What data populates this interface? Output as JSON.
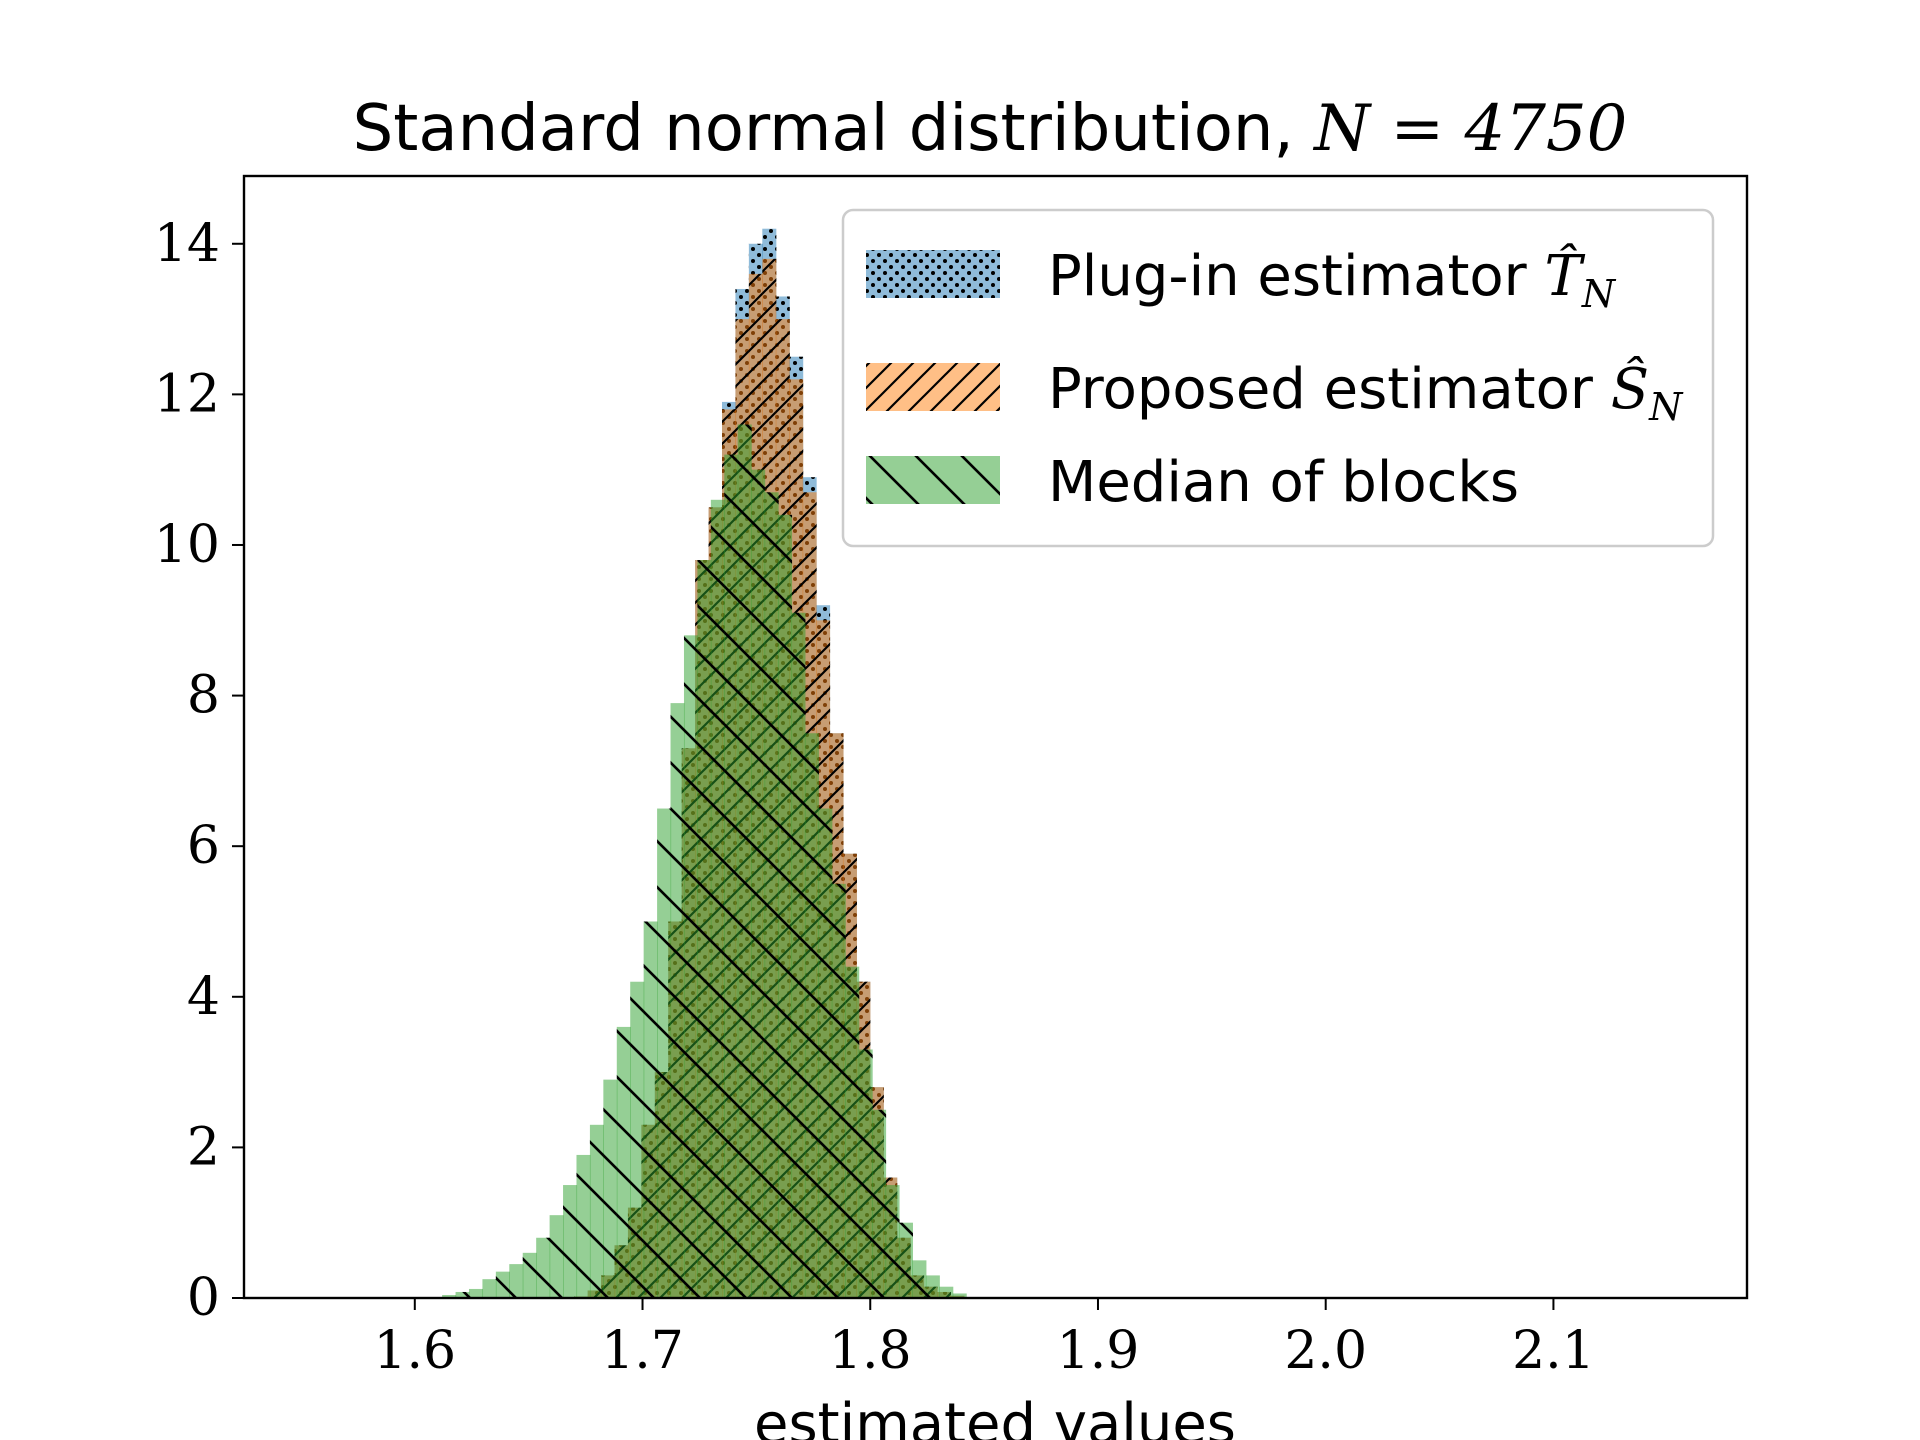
{
  "chart_data": {
    "type": "histogram",
    "title_text": "Standard normal distribution, ",
    "title_math": "N = 4750",
    "xlabel": "estimated values",
    "ylabel": "",
    "xlim": [
      1.525,
      2.185
    ],
    "ylim": [
      0,
      14.9
    ],
    "x_ticks": [
      {
        "value": 1.6,
        "label": "1.6"
      },
      {
        "value": 1.7,
        "label": "1.7"
      },
      {
        "value": 1.8,
        "label": "1.8"
      },
      {
        "value": 1.9,
        "label": "1.9"
      },
      {
        "value": 2.0,
        "label": "2.0"
      },
      {
        "value": 2.1,
        "label": "2.1"
      }
    ],
    "y_ticks": [
      {
        "value": 0,
        "label": "0"
      },
      {
        "value": 2,
        "label": "2"
      },
      {
        "value": 4,
        "label": "4"
      },
      {
        "value": 6,
        "label": "6"
      },
      {
        "value": 8,
        "label": "8"
      },
      {
        "value": 10,
        "label": "10"
      },
      {
        "value": 12,
        "label": "12"
      },
      {
        "value": 14,
        "label": "14"
      }
    ],
    "grid": false,
    "legend_position": "top-right",
    "series": [
      {
        "name": "Plug-in estimator ",
        "name_math": "T̂",
        "name_sub": "N",
        "color": "#1f77b4",
        "hatch": "dots",
        "bin_width": 0.0059,
        "bin_edges": [
          1.67,
          1.6759,
          1.6818,
          1.6877,
          1.6936,
          1.6995,
          1.7054,
          1.7113,
          1.7172,
          1.7231,
          1.729,
          1.7349,
          1.7408,
          1.7467,
          1.7526,
          1.7585,
          1.7644,
          1.7703,
          1.7762,
          1.7821,
          1.788,
          1.7939,
          1.7998,
          1.8057,
          1.8116,
          1.8175,
          1.8234,
          1.8293,
          1.8352,
          1.8411,
          1.847
        ],
        "values": [
          0.02,
          0.1,
          0.3,
          0.7,
          1.2,
          2.3,
          3.0,
          5.0,
          7.3,
          9.8,
          10.5,
          11.9,
          13.4,
          14.0,
          14.2,
          13.3,
          12.5,
          10.9,
          9.2,
          7.5,
          5.9,
          4.2,
          2.8,
          1.6,
          0.8,
          0.3,
          0.15,
          0.08,
          0.03,
          0.01
        ]
      },
      {
        "name": "Proposed estimator ",
        "name_math": "Ŝ",
        "name_sub": "N",
        "color": "#ff7f0e",
        "hatch": "forward",
        "bin_width": 0.0059,
        "bin_edges": [
          1.67,
          1.6759,
          1.6818,
          1.6877,
          1.6936,
          1.6995,
          1.7054,
          1.7113,
          1.7172,
          1.7231,
          1.729,
          1.7349,
          1.7408,
          1.7467,
          1.7526,
          1.7585,
          1.7644,
          1.7703,
          1.7762,
          1.7821,
          1.788,
          1.7939,
          1.7998,
          1.8057,
          1.8116,
          1.8175,
          1.8234,
          1.8293,
          1.8352,
          1.8411,
          1.847
        ],
        "values": [
          0.02,
          0.1,
          0.3,
          0.7,
          1.2,
          2.3,
          3.0,
          5.0,
          7.3,
          9.8,
          10.5,
          11.8,
          13.0,
          13.6,
          13.8,
          13.0,
          12.2,
          10.7,
          9.0,
          7.5,
          5.9,
          4.2,
          2.8,
          1.6,
          0.8,
          0.3,
          0.15,
          0.08,
          0.03,
          0.01
        ]
      },
      {
        "name": "Median of blocks",
        "name_math": "",
        "name_sub": "",
        "color": "#2ca02c",
        "hatch": "backward",
        "bin_width": 0.0059,
        "bin_edges": [
          1.612,
          1.6179,
          1.6238,
          1.6297,
          1.6356,
          1.6415,
          1.6474,
          1.6533,
          1.6592,
          1.6651,
          1.671,
          1.6769,
          1.6828,
          1.6887,
          1.6946,
          1.7005,
          1.7064,
          1.7123,
          1.7182,
          1.7241,
          1.73,
          1.7359,
          1.7418,
          1.7477,
          1.7536,
          1.7595,
          1.7654,
          1.7713,
          1.7772,
          1.7831,
          1.789,
          1.7949,
          1.8008,
          1.8067,
          1.8126,
          1.8185,
          1.8244,
          1.8303,
          1.8362,
          1.8421
        ],
        "values": [
          0.04,
          0.08,
          0.12,
          0.25,
          0.35,
          0.45,
          0.6,
          0.8,
          1.1,
          1.5,
          1.9,
          2.3,
          2.9,
          3.6,
          4.2,
          5.0,
          6.5,
          7.9,
          8.8,
          9.8,
          10.6,
          11.2,
          11.6,
          11.0,
          10.7,
          10.4,
          9.1,
          7.5,
          6.5,
          5.5,
          4.4,
          3.3,
          2.5,
          1.5,
          1.0,
          0.5,
          0.3,
          0.15,
          0.06
        ]
      }
    ]
  }
}
